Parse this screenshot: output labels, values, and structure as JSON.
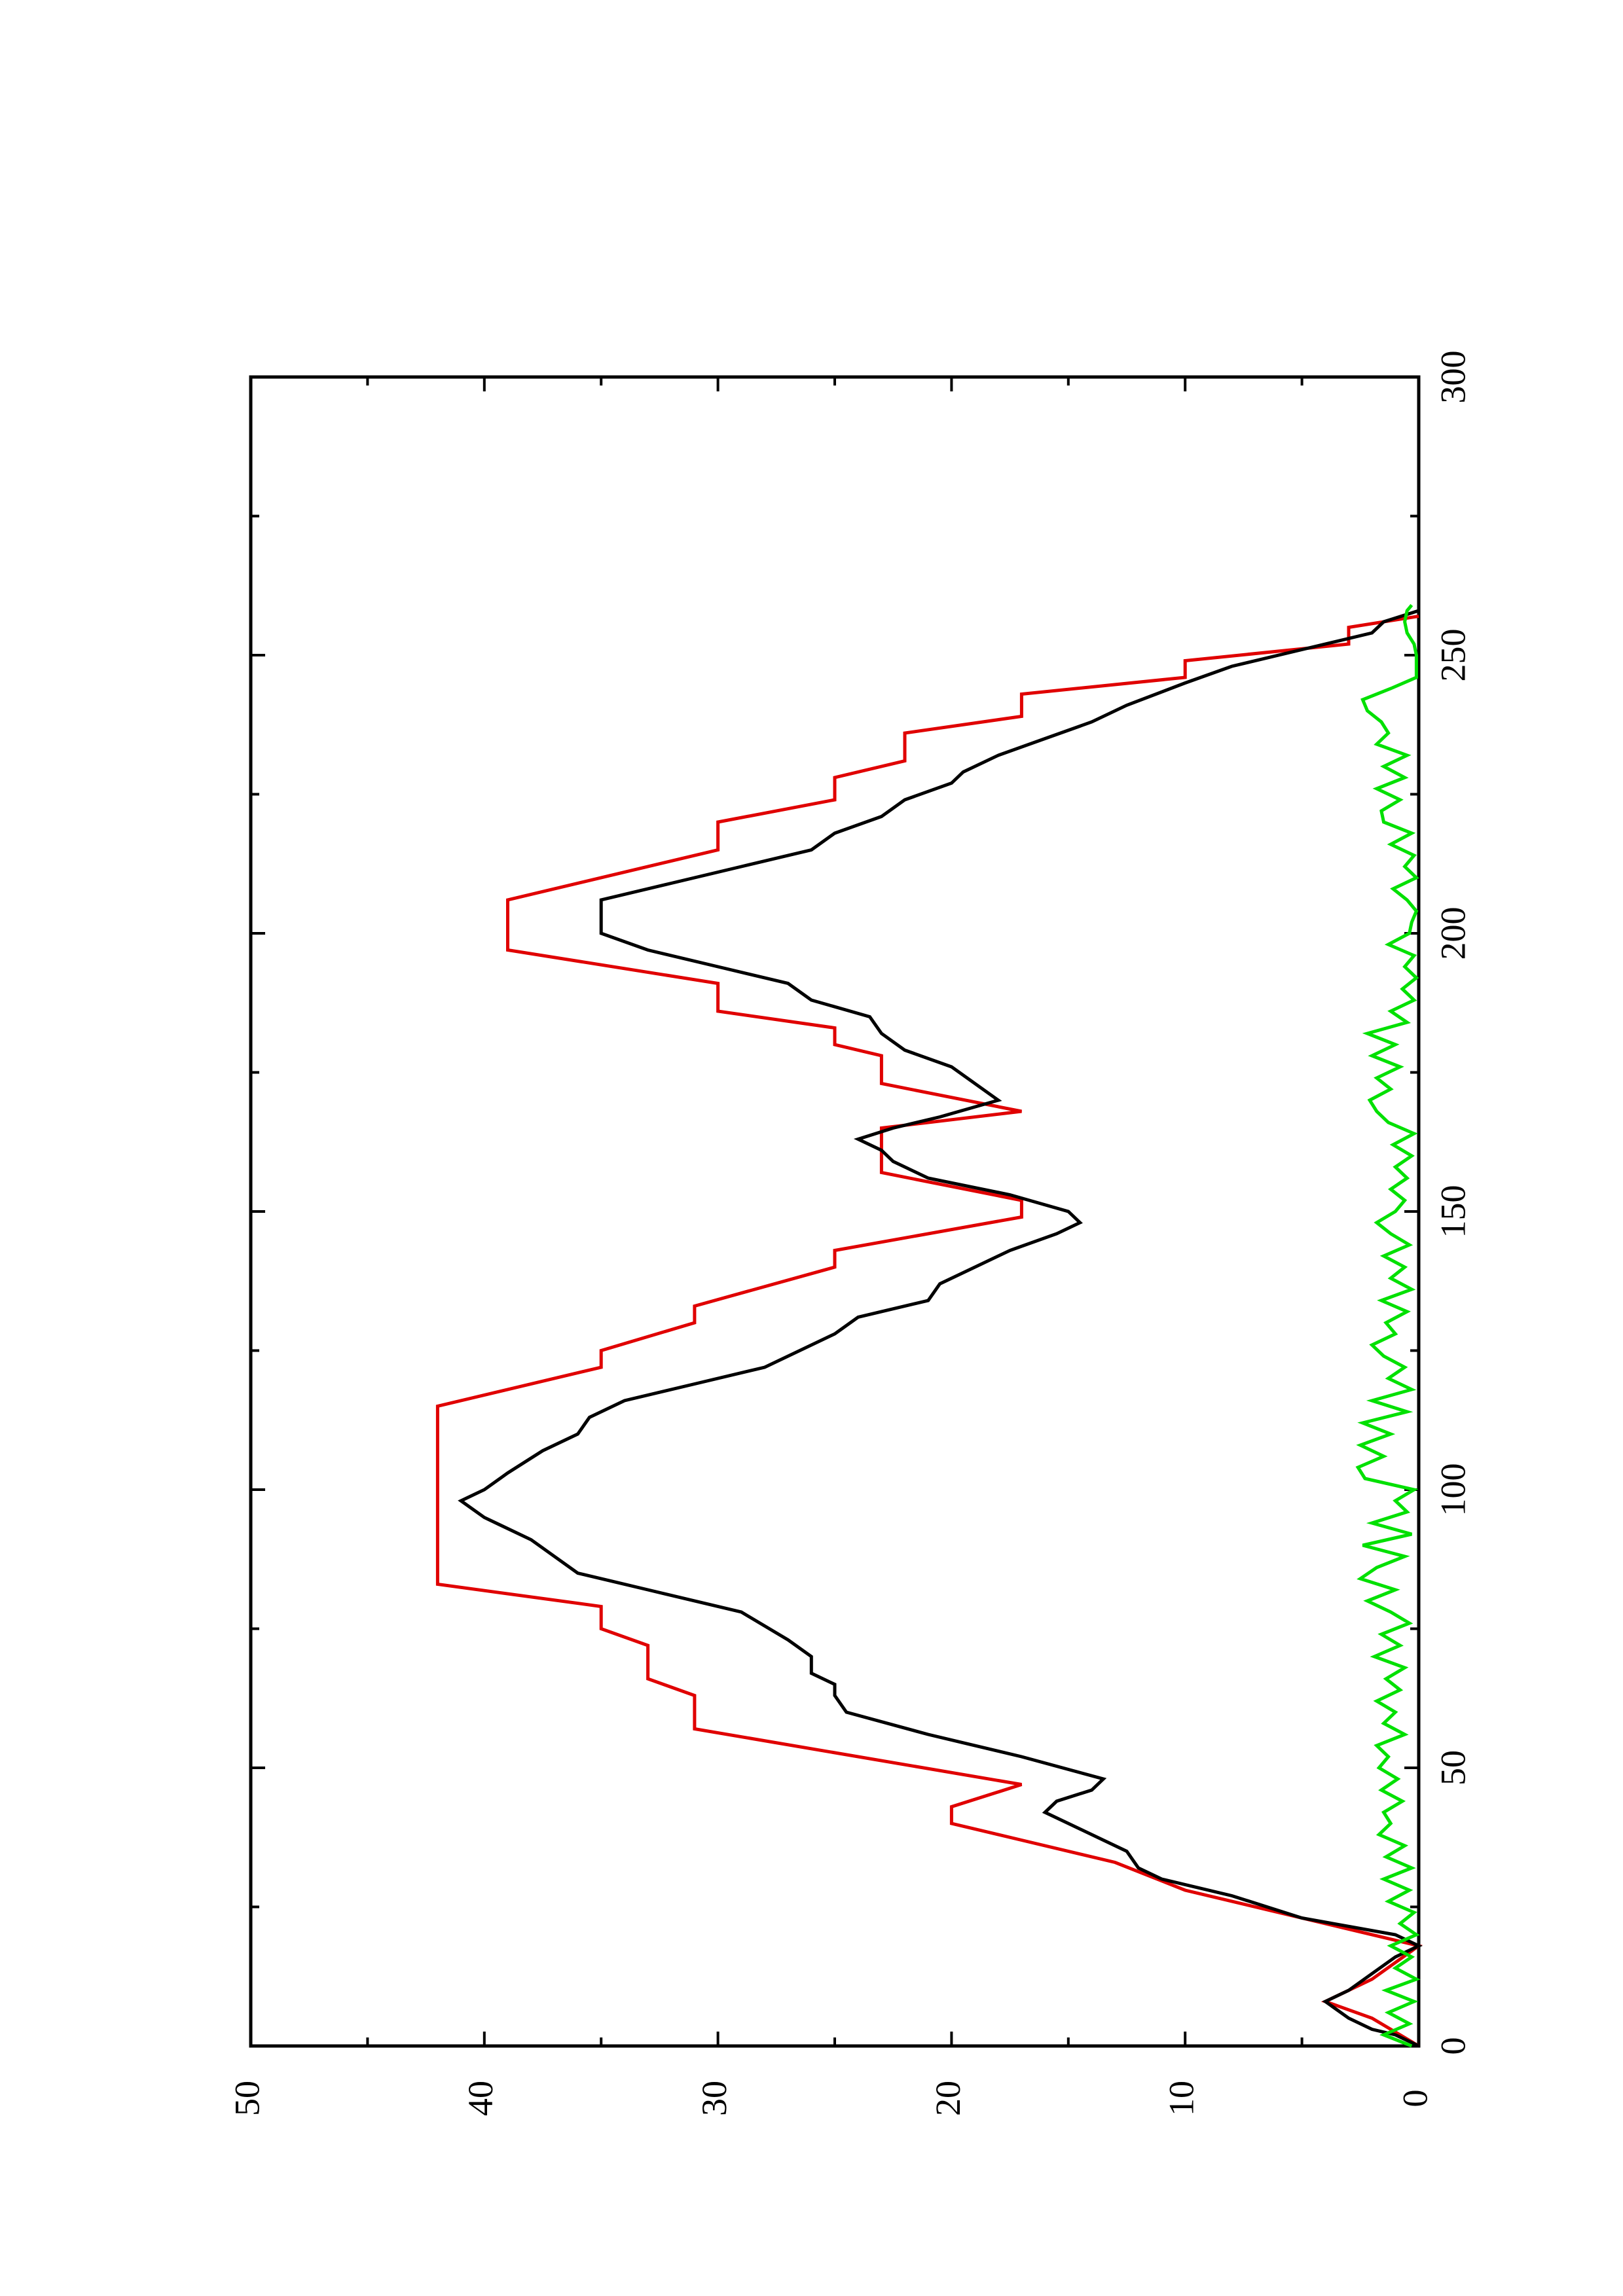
{
  "chart_data": {
    "type": "line",
    "orientation": "rotated-90-ccw",
    "title": "",
    "xlabel": "",
    "ylabel": "",
    "xlim": [
      0,
      300
    ],
    "ylim": [
      0,
      50
    ],
    "x_ticks": [
      0,
      50,
      100,
      150,
      200,
      250,
      300
    ],
    "y_ticks": [
      0,
      10,
      20,
      30,
      40,
      50
    ],
    "x_tick_labels": [
      "0",
      "50",
      "100",
      "150",
      "200",
      "250",
      "300"
    ],
    "y_tick_labels": [
      "0",
      "10",
      "20",
      "30",
      "40",
      "50"
    ],
    "grid": false,
    "legend": "none",
    "series": [
      {
        "color": "#e00000",
        "points": [
          [
            0,
            0
          ],
          [
            5,
            2
          ],
          [
            8,
            4
          ],
          [
            12,
            2
          ],
          [
            15,
            1
          ],
          [
            18,
            0
          ],
          [
            28,
            10
          ],
          [
            33,
            13
          ],
          [
            37,
            17
          ],
          [
            40,
            20
          ],
          [
            43,
            20
          ],
          [
            47,
            17
          ],
          [
            57,
            31
          ],
          [
            63,
            31
          ],
          [
            66,
            33
          ],
          [
            72,
            33
          ],
          [
            75,
            35
          ],
          [
            79,
            35
          ],
          [
            83,
            42
          ],
          [
            115,
            42
          ],
          [
            122,
            35
          ],
          [
            125,
            35
          ],
          [
            130,
            31
          ],
          [
            133,
            31
          ],
          [
            140,
            25
          ],
          [
            143,
            25
          ],
          [
            149,
            17
          ],
          [
            152,
            17
          ],
          [
            157,
            23
          ],
          [
            162,
            23
          ],
          [
            165,
            23
          ],
          [
            168,
            17
          ],
          [
            173,
            23
          ],
          [
            178,
            23
          ],
          [
            180,
            25
          ],
          [
            183,
            25
          ],
          [
            186,
            30
          ],
          [
            191,
            30
          ],
          [
            197,
            39
          ],
          [
            206,
            39
          ],
          [
            215,
            30
          ],
          [
            220,
            30
          ],
          [
            224,
            25
          ],
          [
            228,
            25
          ],
          [
            231,
            22
          ],
          [
            236,
            22
          ],
          [
            239,
            17
          ],
          [
            243,
            17
          ],
          [
            246,
            10
          ],
          [
            249,
            10
          ],
          [
            252,
            3
          ],
          [
            255,
            3
          ],
          [
            257,
            0
          ]
        ]
      },
      {
        "color": "#000000",
        "points": [
          [
            0,
            0
          ],
          [
            2,
            1
          ],
          [
            3,
            2
          ],
          [
            5,
            3
          ],
          [
            8,
            4
          ],
          [
            10,
            3
          ],
          [
            13,
            2
          ],
          [
            16,
            1
          ],
          [
            18,
            0
          ],
          [
            20,
            1
          ],
          [
            23,
            5
          ],
          [
            27,
            8
          ],
          [
            30,
            11
          ],
          [
            32,
            12
          ],
          [
            35,
            12.5
          ],
          [
            37,
            13.5
          ],
          [
            40,
            15
          ],
          [
            42,
            16
          ],
          [
            44,
            15.5
          ],
          [
            46,
            14
          ],
          [
            48,
            13.5
          ],
          [
            52,
            17
          ],
          [
            56,
            21
          ],
          [
            60,
            24.5
          ],
          [
            63,
            25
          ],
          [
            65,
            25
          ],
          [
            67,
            26
          ],
          [
            70,
            26
          ],
          [
            73,
            27
          ],
          [
            78,
            29
          ],
          [
            82,
            33
          ],
          [
            85,
            36
          ],
          [
            88,
            37
          ],
          [
            91,
            38
          ],
          [
            95,
            40
          ],
          [
            98,
            41
          ],
          [
            100,
            40
          ],
          [
            103,
            39
          ],
          [
            107,
            37.5
          ],
          [
            110,
            36
          ],
          [
            113,
            35.5
          ],
          [
            116,
            34
          ],
          [
            119,
            31
          ],
          [
            122,
            28
          ],
          [
            125,
            26.5
          ],
          [
            128,
            25
          ],
          [
            131,
            24
          ],
          [
            134,
            21
          ],
          [
            137,
            20.5
          ],
          [
            140,
            19
          ],
          [
            143,
            17.5
          ],
          [
            146,
            15.5
          ],
          [
            148,
            14.5
          ],
          [
            150,
            15
          ],
          [
            153,
            17.5
          ],
          [
            156,
            21
          ],
          [
            159,
            22.5
          ],
          [
            161,
            23
          ],
          [
            163,
            24
          ],
          [
            165,
            22.5
          ],
          [
            167,
            20.5
          ],
          [
            170,
            18
          ],
          [
            173,
            19
          ],
          [
            176,
            20
          ],
          [
            179,
            22
          ],
          [
            182,
            23
          ],
          [
            185,
            23.5
          ],
          [
            188,
            26
          ],
          [
            191,
            27
          ],
          [
            194,
            30
          ],
          [
            197,
            33
          ],
          [
            200,
            35
          ],
          [
            206,
            35
          ],
          [
            209,
            32
          ],
          [
            212,
            29
          ],
          [
            215,
            26
          ],
          [
            218,
            25
          ],
          [
            221,
            23
          ],
          [
            224,
            22
          ],
          [
            227,
            20
          ],
          [
            229,
            19.5
          ],
          [
            232,
            18
          ],
          [
            235,
            16
          ],
          [
            238,
            14
          ],
          [
            241,
            12.5
          ],
          [
            245,
            10
          ],
          [
            248,
            8
          ],
          [
            251,
            5
          ],
          [
            254,
            2
          ],
          [
            256,
            1.5
          ],
          [
            258,
            0
          ]
        ]
      },
      {
        "color": "#00e000",
        "points": [
          [
            0,
            0.3
          ],
          [
            2,
            1.5
          ],
          [
            4,
            0.4
          ],
          [
            6,
            1.3
          ],
          [
            8,
            0.2
          ],
          [
            10,
            1.4
          ],
          [
            12,
            0.1
          ],
          [
            14,
            1.0
          ],
          [
            16,
            0.3
          ],
          [
            18,
            1.2
          ],
          [
            20,
            0.1
          ],
          [
            22,
            0.8
          ],
          [
            24,
            0.2
          ],
          [
            26,
            1.3
          ],
          [
            28,
            0.4
          ],
          [
            30,
            1.5
          ],
          [
            32,
            0.3
          ],
          [
            34,
            1.4
          ],
          [
            36,
            0.6
          ],
          [
            38,
            1.7
          ],
          [
            40,
            1.2
          ],
          [
            42,
            1.5
          ],
          [
            44,
            0.7
          ],
          [
            46,
            1.6
          ],
          [
            48,
            0.9
          ],
          [
            50,
            1.7
          ],
          [
            52,
            1.3
          ],
          [
            54,
            1.8
          ],
          [
            56,
            0.6
          ],
          [
            58,
            1.5
          ],
          [
            60,
            1.0
          ],
          [
            62,
            1.8
          ],
          [
            64,
            0.8
          ],
          [
            66,
            1.4
          ],
          [
            68,
            0.6
          ],
          [
            70,
            1.9
          ],
          [
            72,
            0.8
          ],
          [
            74,
            1.6
          ],
          [
            76,
            0.4
          ],
          [
            78,
            1.2
          ],
          [
            80,
            2.2
          ],
          [
            82,
            1.0
          ],
          [
            84,
            2.5
          ],
          [
            86,
            1.8
          ],
          [
            88,
            0.6
          ],
          [
            90,
            2.4
          ],
          [
            92,
            0.3
          ],
          [
            94,
            2.0
          ],
          [
            96,
            0.5
          ],
          [
            98,
            1.0
          ],
          [
            100,
            0.2
          ],
          [
            102,
            2.3
          ],
          [
            104,
            2.6
          ],
          [
            106,
            1.5
          ],
          [
            108,
            2.5
          ],
          [
            110,
            1.2
          ],
          [
            112,
            2.4
          ],
          [
            114,
            0.5
          ],
          [
            116,
            2.0
          ],
          [
            118,
            0.3
          ],
          [
            120,
            1.3
          ],
          [
            122,
            0.6
          ],
          [
            124,
            1.5
          ],
          [
            126,
            2.0
          ],
          [
            128,
            1.0
          ],
          [
            130,
            1.4
          ],
          [
            132,
            0.5
          ],
          [
            134,
            1.6
          ],
          [
            136,
            0.3
          ],
          [
            138,
            1.2
          ],
          [
            140,
            0.6
          ],
          [
            142,
            1.5
          ],
          [
            144,
            0.4
          ],
          [
            146,
            1.2
          ],
          [
            148,
            1.8
          ],
          [
            150,
            1.0
          ],
          [
            152,
            0.6
          ],
          [
            154,
            1.2
          ],
          [
            156,
            0.5
          ],
          [
            158,
            1.0
          ],
          [
            160,
            0.3
          ],
          [
            162,
            1.1
          ],
          [
            164,
            0.2
          ],
          [
            166,
            1.3
          ],
          [
            168,
            1.8
          ],
          [
            170,
            2.1
          ],
          [
            172,
            1.2
          ],
          [
            174,
            1.8
          ],
          [
            176,
            0.8
          ],
          [
            178,
            2.0
          ],
          [
            180,
            1.0
          ],
          [
            182,
            2.2
          ],
          [
            184,
            0.5
          ],
          [
            186,
            1.2
          ],
          [
            188,
            0.2
          ],
          [
            190,
            0.7
          ],
          [
            192,
            0.1
          ],
          [
            194,
            0.6
          ],
          [
            196,
            0.2
          ],
          [
            198,
            1.3
          ],
          [
            200,
            0.4
          ],
          [
            202,
            0.3
          ],
          [
            204,
            0.1
          ],
          [
            206,
            0.5
          ],
          [
            208,
            1.1
          ],
          [
            210,
            0.1
          ],
          [
            212,
            0.6
          ],
          [
            214,
            0.2
          ],
          [
            216,
            1.2
          ],
          [
            218,
            0.3
          ],
          [
            220,
            1.5
          ],
          [
            222,
            1.6
          ],
          [
            224,
            0.8
          ],
          [
            226,
            1.8
          ],
          [
            228,
            0.6
          ],
          [
            230,
            1.5
          ],
          [
            232,
            0.5
          ],
          [
            234,
            1.8
          ],
          [
            236,
            1.3
          ],
          [
            238,
            1.6
          ],
          [
            240,
            2.2
          ],
          [
            242,
            2.4
          ],
          [
            244,
            1.2
          ],
          [
            246,
            0.1
          ],
          [
            250,
            0.1
          ],
          [
            252,
            0.2
          ],
          [
            254,
            0.5
          ],
          [
            256,
            0.6
          ],
          [
            258,
            0.5
          ],
          [
            259,
            0.3
          ]
        ]
      }
    ]
  }
}
